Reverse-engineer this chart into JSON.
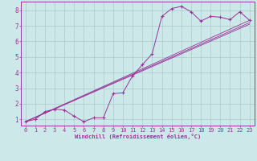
{
  "xlabel": "Windchill (Refroidissement éolien,°C)",
  "bg_color": "#cce8e8",
  "line_color": "#993399",
  "grid_color": "#aacccc",
  "xlim_min": -0.5,
  "xlim_max": 23.5,
  "ylim_min": 0.6,
  "ylim_max": 8.55,
  "yticks": [
    1,
    2,
    3,
    4,
    5,
    6,
    7,
    8
  ],
  "xticks": [
    0,
    1,
    2,
    3,
    4,
    5,
    6,
    7,
    8,
    9,
    10,
    11,
    12,
    13,
    14,
    15,
    16,
    17,
    18,
    19,
    20,
    21,
    22,
    23
  ],
  "curve_x": [
    0,
    1,
    2,
    3,
    4,
    5,
    6,
    7,
    8,
    9,
    10,
    11,
    12,
    13,
    14,
    15,
    16,
    17,
    18,
    19,
    20,
    21,
    22,
    23
  ],
  "curve_y": [
    0.85,
    1.0,
    1.5,
    1.65,
    1.6,
    1.2,
    0.85,
    1.1,
    1.1,
    2.65,
    2.7,
    3.8,
    4.5,
    5.2,
    7.6,
    8.1,
    8.25,
    7.9,
    7.3,
    7.6,
    7.55,
    7.4,
    7.9,
    7.35
  ],
  "straight_lines": [
    {
      "x": [
        0,
        23
      ],
      "y": [
        0.85,
        7.1
      ]
    },
    {
      "x": [
        0,
        23
      ],
      "y": [
        0.85,
        7.2
      ]
    },
    {
      "x": [
        0,
        23
      ],
      "y": [
        0.85,
        7.35
      ]
    }
  ],
  "tick_fontsize": 5.0,
  "xlabel_fontsize": 5.0
}
